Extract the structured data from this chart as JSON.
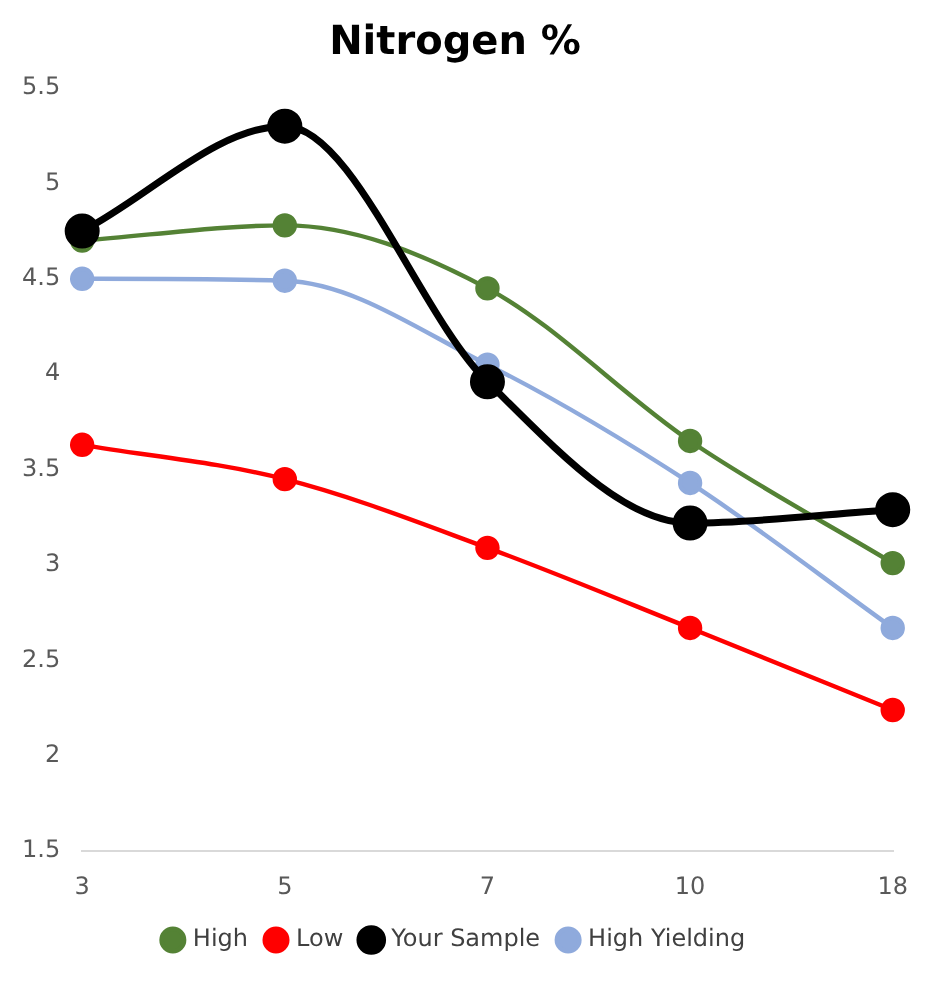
{
  "chart_data": {
    "type": "line",
    "title": "Nitrogen %",
    "categories": [
      "3",
      "5",
      "7",
      "10",
      "18"
    ],
    "series": [
      {
        "name": "High",
        "color": "#548235",
        "values": [
          4.7,
          4.78,
          4.45,
          3.65,
          3.01
        ]
      },
      {
        "name": "Low",
        "color": "#ff0000",
        "values": [
          3.63,
          3.45,
          3.09,
          2.67,
          2.24
        ]
      },
      {
        "name": "Your Sample",
        "color": "#000000",
        "values": [
          4.75,
          5.3,
          3.96,
          3.22,
          3.29
        ]
      },
      {
        "name": "High Yielding",
        "color": "#8faadc",
        "values": [
          4.5,
          4.49,
          4.05,
          3.43,
          2.67
        ]
      }
    ],
    "ylim": [
      1.5,
      5.5
    ],
    "yticks": [
      1.5,
      2,
      2.5,
      3,
      3.5,
      4,
      4.5,
      5,
      5.5
    ],
    "grid": false,
    "legend": "bottom",
    "marker": "circle",
    "line_style": "solid"
  }
}
